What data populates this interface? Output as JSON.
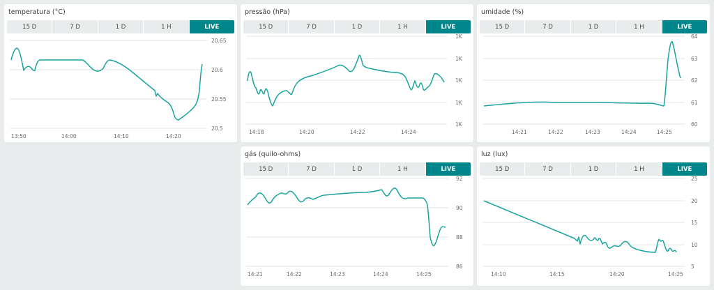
{
  "tab_labels": [
    "15 D",
    "7 D",
    "1 D",
    "1 H",
    "LIVE"
  ],
  "active_tab": "LIVE",
  "colors": {
    "line": "#1aa39e",
    "accent": "#00868a",
    "background": "#e8ecec"
  },
  "cards": [
    {
      "id": "temperatura",
      "title": "temperatura (°C)",
      "chart_data": {
        "type": "line",
        "y_ticks": [
          "20.65",
          "20.6",
          "20.55",
          "20.5"
        ],
        "x_ticks": [
          "13:50",
          "14:00",
          "14:10",
          "14:20"
        ],
        "grid": true
      }
    },
    {
      "id": "pressao",
      "title": "pressão (hPa)",
      "chart_data": {
        "type": "line",
        "y_ticks": [
          "1K",
          "1K",
          "1K",
          "1K",
          "1K"
        ],
        "x_ticks": [
          "14:18",
          "14:20",
          "14:22",
          "14:24"
        ],
        "grid": true
      }
    },
    {
      "id": "umidade",
      "title": "umidade (%)",
      "chart_data": {
        "type": "line",
        "y_ticks": [
          "64",
          "63",
          "62",
          "61",
          "60"
        ],
        "x_ticks": [
          "14:21",
          "14:22",
          "14:23",
          "14:24",
          "14:25"
        ],
        "grid": true
      }
    },
    {
      "id": "gas",
      "title": "gás (quilo-ohms)",
      "chart_data": {
        "type": "line",
        "y_ticks": [
          "92",
          "90",
          "88",
          "86"
        ],
        "x_ticks": [
          "14:21",
          "14:22",
          "14:23",
          "14:24",
          "14:25"
        ],
        "grid": true
      }
    },
    {
      "id": "luz",
      "title": "luz (lux)",
      "chart_data": {
        "type": "line",
        "y_ticks": [
          "25",
          "20",
          "15",
          "10",
          "5"
        ],
        "x_ticks": [
          "14:10",
          "14:15",
          "14:20",
          "14:25"
        ],
        "grid": true
      }
    }
  ]
}
